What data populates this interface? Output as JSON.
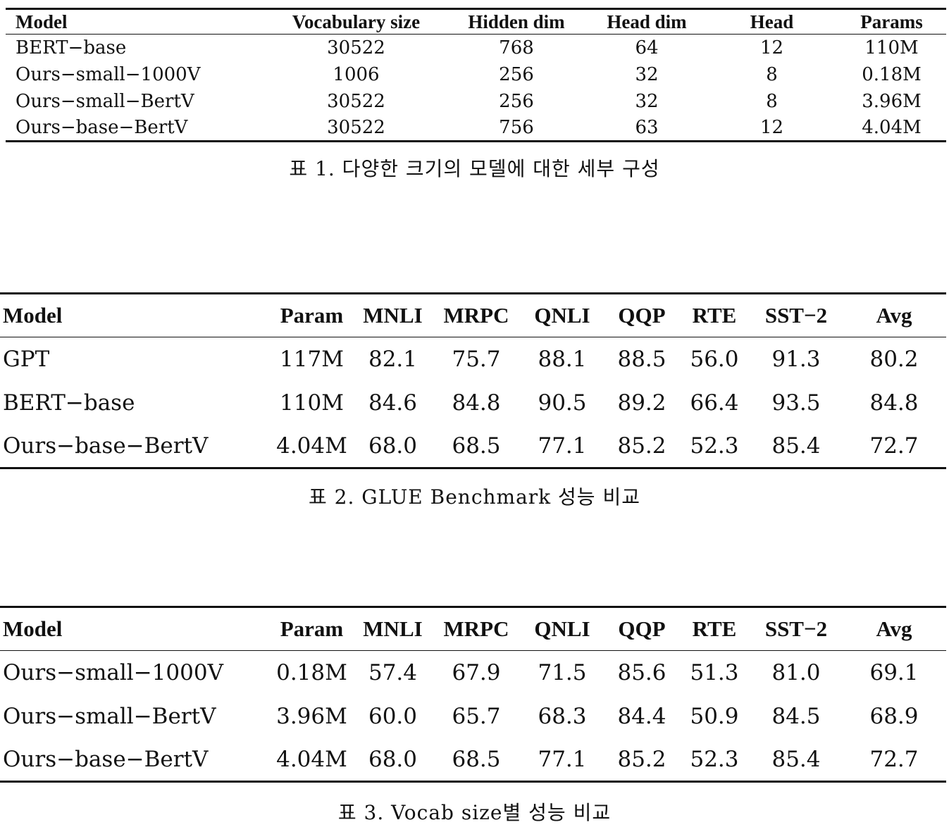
{
  "table1": {
    "headers": [
      "Model",
      "Vocabulary size",
      "Hidden dim",
      "Head dim",
      "Head",
      "Params"
    ],
    "rows": [
      [
        "BERT−base",
        "30522",
        "768",
        "64",
        "12",
        "110M"
      ],
      [
        "Ours−small−1000V",
        "1006",
        "256",
        "32",
        "8",
        "0.18M"
      ],
      [
        "Ours−small−BertV",
        "30522",
        "256",
        "32",
        "8",
        "3.96M"
      ],
      [
        "Ours−base−BertV",
        "30522",
        "756",
        "63",
        "12",
        "4.04M"
      ]
    ],
    "caption": "표 1. 다양한 크기의 모델에 대한 세부 구성"
  },
  "table2": {
    "headers": [
      "Model",
      "Param",
      "MNLI",
      "MRPC",
      "QNLI",
      "QQP",
      "RTE",
      "SST−2",
      "Avg"
    ],
    "rows": [
      [
        "GPT",
        "117M",
        "82.1",
        "75.7",
        "88.1",
        "88.5",
        "56.0",
        "91.3",
        "80.2"
      ],
      [
        "BERT−base",
        "110M",
        "84.6",
        "84.8",
        "90.5",
        "89.2",
        "66.4",
        "93.5",
        "84.8"
      ],
      [
        "Ours−base−BertV",
        "4.04M",
        "68.0",
        "68.5",
        "77.1",
        "85.2",
        "52.3",
        "85.4",
        "72.7"
      ]
    ],
    "caption": "표 2. GLUE Benchmark 성능 비교"
  },
  "table3": {
    "headers": [
      "Model",
      "Param",
      "MNLI",
      "MRPC",
      "QNLI",
      "QQP",
      "RTE",
      "SST−2",
      "Avg"
    ],
    "rows": [
      [
        "Ours−small−1000V",
        "0.18M",
        "57.4",
        "67.9",
        "71.5",
        "85.6",
        "51.3",
        "81.0",
        "69.1"
      ],
      [
        "Ours−small−BertV",
        "3.96M",
        "60.0",
        "65.7",
        "68.3",
        "84.4",
        "50.9",
        "84.5",
        "68.9"
      ],
      [
        "Ours−base−BertV",
        "4.04M",
        "68.0",
        "68.5",
        "77.1",
        "85.2",
        "52.3",
        "85.4",
        "72.7"
      ]
    ],
    "caption": "표 3. Vocab size별 성능 비교"
  }
}
